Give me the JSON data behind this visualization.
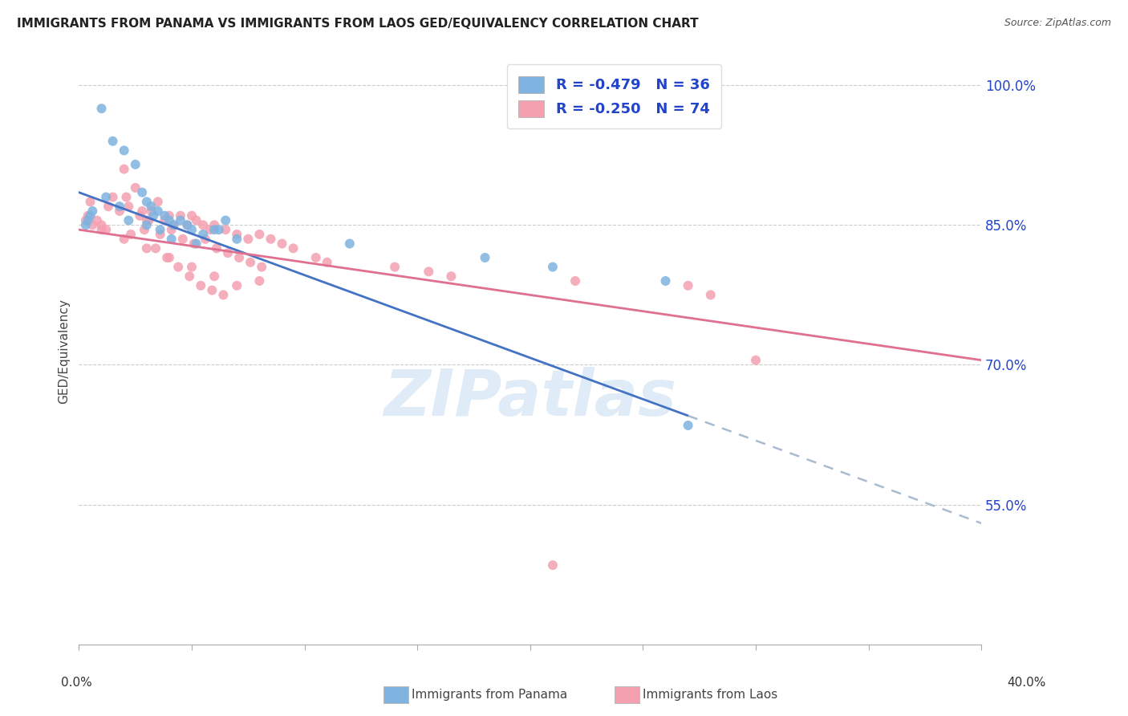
{
  "title": "IMMIGRANTS FROM PANAMA VS IMMIGRANTS FROM LAOS GED/EQUIVALENCY CORRELATION CHART",
  "source": "Source: ZipAtlas.com",
  "ylabel": "GED/Equivalency",
  "yticks": [
    55.0,
    70.0,
    85.0,
    100.0
  ],
  "ytick_labels": [
    "55.0%",
    "70.0%",
    "85.0%",
    "100.0%"
  ],
  "xlim": [
    0,
    40
  ],
  "ylim": [
    40,
    103
  ],
  "panama_R": "-0.479",
  "panama_N": "36",
  "laos_R": "-0.250",
  "laos_N": "74",
  "panama_color": "#7fb3e0",
  "laos_color": "#f4a0b0",
  "panama_line_color": "#4472c4",
  "laos_line_color": "#e07090",
  "dashed_color": "#aabbd0",
  "legend_text_color": "#2244cc",
  "watermark": "ZIPatlas",
  "panama_scatter_x": [
    1.0,
    2.5,
    1.5,
    2.0,
    2.8,
    3.0,
    3.2,
    3.5,
    3.8,
    4.0,
    4.2,
    4.5,
    4.8,
    5.0,
    5.5,
    6.0,
    6.5,
    7.0,
    1.2,
    1.8,
    2.2,
    3.0,
    3.3,
    3.6,
    4.1,
    5.2,
    6.2,
    12.0,
    18.0,
    21.0,
    26.0,
    0.3,
    0.4,
    0.5,
    0.6,
    27.0
  ],
  "panama_scatter_y": [
    97.5,
    91.5,
    94.0,
    93.0,
    88.5,
    87.5,
    87.0,
    86.5,
    86.0,
    85.5,
    85.0,
    85.5,
    85.0,
    84.5,
    84.0,
    84.5,
    85.5,
    83.5,
    88.0,
    87.0,
    85.5,
    85.0,
    86.0,
    84.5,
    83.5,
    83.0,
    84.5,
    83.0,
    81.5,
    80.5,
    79.0,
    85.0,
    85.5,
    86.0,
    86.5,
    63.5
  ],
  "laos_scatter_x": [
    0.5,
    1.0,
    1.5,
    2.0,
    2.2,
    2.5,
    2.8,
    3.0,
    3.2,
    3.5,
    3.8,
    4.0,
    4.2,
    4.5,
    4.8,
    5.0,
    5.2,
    5.5,
    5.8,
    6.0,
    6.5,
    7.0,
    7.5,
    8.0,
    8.5,
    9.0,
    1.3,
    2.1,
    2.7,
    3.1,
    3.6,
    4.1,
    4.6,
    5.1,
    5.6,
    6.1,
    6.6,
    7.1,
    7.6,
    8.1,
    1.8,
    2.3,
    2.9,
    3.4,
    3.9,
    4.4,
    4.9,
    5.4,
    5.9,
    6.4,
    9.5,
    10.5,
    11.0,
    14.0,
    15.5,
    16.5,
    22.0,
    27.0,
    28.0,
    0.3,
    0.4,
    0.6,
    0.8,
    1.0,
    1.2,
    2.0,
    3.0,
    4.0,
    5.0,
    6.0,
    7.0,
    8.0,
    21.0,
    30.0
  ],
  "laos_scatter_y": [
    87.5,
    84.5,
    88.0,
    91.0,
    87.0,
    89.0,
    86.5,
    85.5,
    86.5,
    87.5,
    85.5,
    86.0,
    85.0,
    86.0,
    85.0,
    86.0,
    85.5,
    85.0,
    84.5,
    85.0,
    84.5,
    84.0,
    83.5,
    84.0,
    83.5,
    83.0,
    87.0,
    88.0,
    86.0,
    85.5,
    84.0,
    84.5,
    83.5,
    83.0,
    83.5,
    82.5,
    82.0,
    81.5,
    81.0,
    80.5,
    86.5,
    84.0,
    84.5,
    82.5,
    81.5,
    80.5,
    79.5,
    78.5,
    78.0,
    77.5,
    82.5,
    81.5,
    81.0,
    80.5,
    80.0,
    79.5,
    79.0,
    78.5,
    77.5,
    85.5,
    86.0,
    85.0,
    85.5,
    85.0,
    84.5,
    83.5,
    82.5,
    81.5,
    80.5,
    79.5,
    78.5,
    79.0,
    48.5,
    70.5
  ],
  "panama_trend_x0": 0,
  "panama_trend_y0": 88.5,
  "panama_trend_x1": 40,
  "panama_trend_y1": 53.0,
  "panama_solid_end_x": 27,
  "laos_trend_x0": 0,
  "laos_trend_y0": 84.5,
  "laos_trend_x1": 40,
  "laos_trend_y1": 70.5,
  "bg_color": "#ffffff",
  "grid_color": "#cccccc"
}
